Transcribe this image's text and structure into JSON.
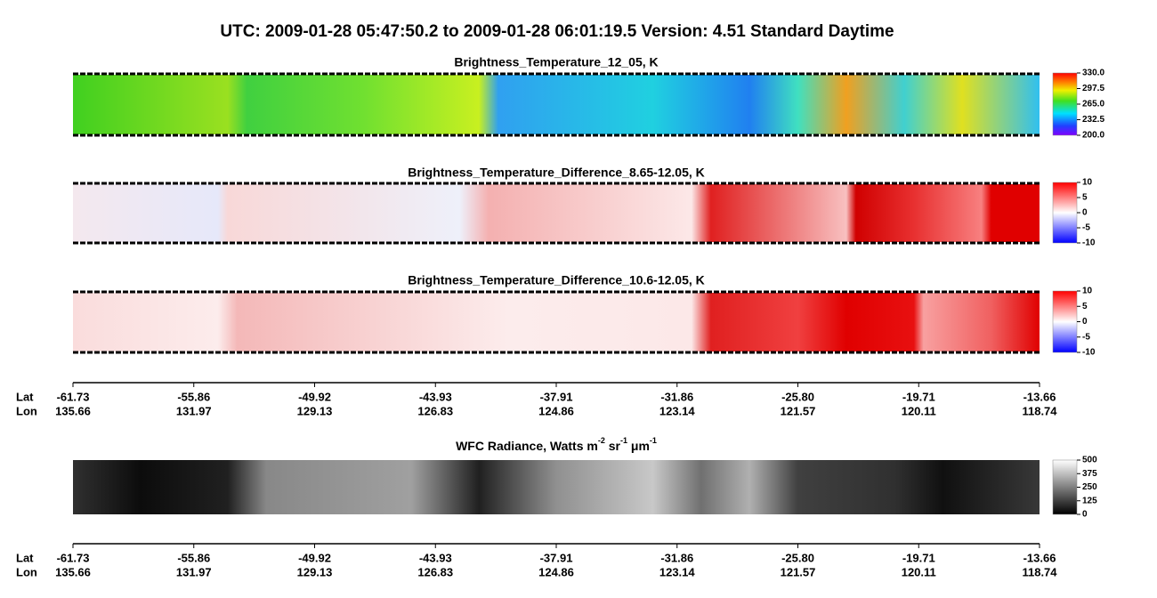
{
  "title": "UTC:  2009-01-28   05:47:50.2  to  2009-01-28   06:01:19.5    Version: 4.51  Standard Daytime",
  "chart_data": [
    {
      "type": "heatmap",
      "title": "Brightness_Temperature_12_05, K",
      "colormap": "rainbow",
      "clim": [
        200,
        330
      ],
      "cticks": [
        {
          "value": 330,
          "label": "330.0"
        },
        {
          "value": 297.5,
          "label": "297.5"
        },
        {
          "value": 265,
          "label": "265.0"
        },
        232.5,
        {
          "value": 200,
          "label": "200.0"
        }
      ]
    },
    {
      "type": "heatmap",
      "title": "Brightness_Temperature_Difference_8.65-12.05, K",
      "colormap": "bwr",
      "clim": [
        -10,
        10
      ],
      "cticks": [
        10,
        5,
        0,
        -5,
        -10
      ]
    },
    {
      "type": "heatmap",
      "title": "Brightness_Temperature_Difference_10.6-12.05, K",
      "colormap": "bwr",
      "clim": [
        -10,
        10
      ],
      "cticks": [
        10,
        5,
        0,
        -5,
        -10
      ]
    },
    {
      "type": "heatmap",
      "title_parts": [
        "WFC Radiance, Watts m",
        "-2",
        " sr",
        "-1",
        " μm",
        "-1"
      ],
      "colormap": "gray",
      "clim": [
        0,
        500
      ],
      "cticks": [
        500,
        375,
        250,
        125,
        0
      ]
    }
  ],
  "axis": {
    "row_labels": [
      "Lat",
      "Lon"
    ],
    "lat": [
      -61.73,
      -55.86,
      -49.92,
      -43.93,
      -37.91,
      -31.86,
      -25.8,
      -19.71,
      -13.66
    ],
    "lon": [
      135.66,
      131.97,
      129.13,
      126.83,
      124.86,
      123.14,
      121.57,
      120.11,
      118.74
    ]
  }
}
